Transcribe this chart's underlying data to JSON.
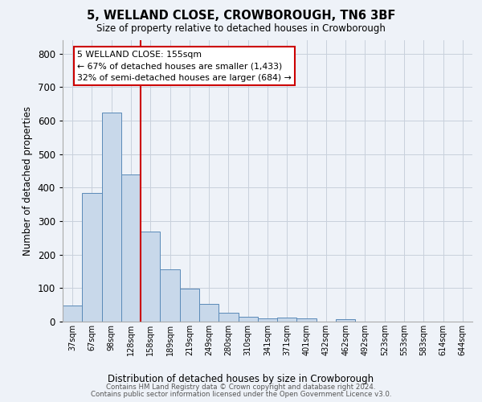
{
  "title": "5, WELLAND CLOSE, CROWBOROUGH, TN6 3BF",
  "subtitle": "Size of property relative to detached houses in Crowborough",
  "xlabel": "Distribution of detached houses by size in Crowborough",
  "ylabel": "Number of detached properties",
  "categories": [
    "37sqm",
    "67sqm",
    "98sqm",
    "128sqm",
    "158sqm",
    "189sqm",
    "219sqm",
    "249sqm",
    "280sqm",
    "310sqm",
    "341sqm",
    "371sqm",
    "401sqm",
    "432sqm",
    "462sqm",
    "492sqm",
    "523sqm",
    "553sqm",
    "583sqm",
    "614sqm",
    "644sqm"
  ],
  "values": [
    47,
    385,
    625,
    440,
    268,
    155,
    98,
    52,
    27,
    15,
    10,
    12,
    10,
    0,
    7,
    0,
    0,
    0,
    0,
    0,
    0
  ],
  "bar_color": "#c8d8ea",
  "bar_edge_color": "#5a8ab8",
  "grid_color": "#c8d0dc",
  "background_color": "#eef2f8",
  "property_line_color": "#cc0000",
  "annotation_text": "5 WELLAND CLOSE: 155sqm\n← 67% of detached houses are smaller (1,433)\n32% of semi-detached houses are larger (684) →",
  "annotation_box_facecolor": "white",
  "annotation_box_edgecolor": "#cc0000",
  "ylim": [
    0,
    840
  ],
  "yticks": [
    0,
    100,
    200,
    300,
    400,
    500,
    600,
    700,
    800
  ],
  "footnote1": "Contains HM Land Registry data © Crown copyright and database right 2024.",
  "footnote2": "Contains public sector information licensed under the Open Government Licence v3.0."
}
